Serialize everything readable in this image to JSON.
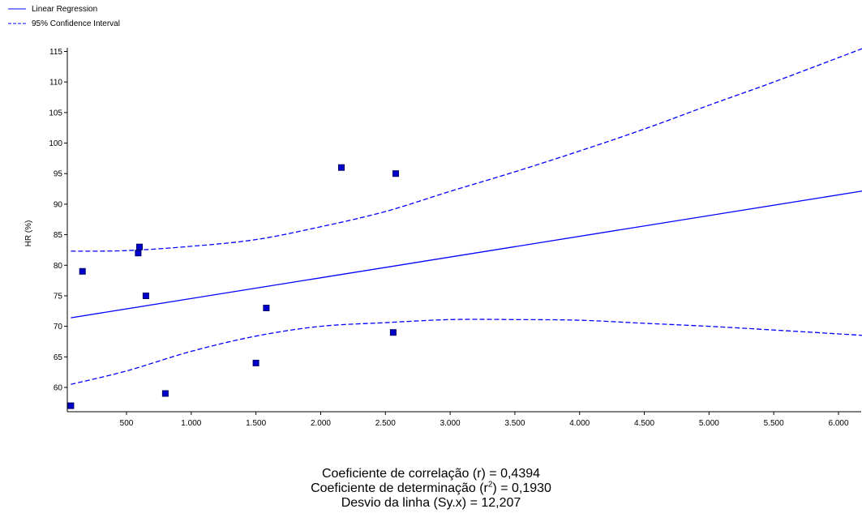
{
  "legend": {
    "regression_label": "Linear Regression",
    "ci_label": "95% Confidence Interval"
  },
  "colors": {
    "series": "#0000ff",
    "marker_fill": "#0000cc",
    "marker_border": "#000066",
    "axis": "#000000"
  },
  "chart_data": {
    "type": "scatter",
    "ylabel": "HR (%)",
    "xlabel": "",
    "xlim": [
      50,
      6200
    ],
    "ylim": [
      56.5,
      116
    ],
    "x_ticks": [
      500,
      1000,
      1500,
      2000,
      2500,
      3000,
      3500,
      4000,
      4500,
      5000,
      5500,
      6000
    ],
    "x_tick_labels": [
      "500",
      "1.000",
      "1.500",
      "2.000",
      "2.500",
      "3.000",
      "3.500",
      "4.000",
      "4.500",
      "5.000",
      "5.500",
      "6.000"
    ],
    "y_ticks": [
      60,
      65,
      70,
      75,
      80,
      85,
      90,
      95,
      100,
      105,
      110,
      115
    ],
    "points": [
      {
        "x": 70,
        "y": 57
      },
      {
        "x": 160,
        "y": 79
      },
      {
        "x": 590,
        "y": 82
      },
      {
        "x": 600,
        "y": 83
      },
      {
        "x": 650,
        "y": 75
      },
      {
        "x": 800,
        "y": 59
      },
      {
        "x": 1500,
        "y": 64
      },
      {
        "x": 1580,
        "y": 73
      },
      {
        "x": 2160,
        "y": 96
      },
      {
        "x": 2560,
        "y": 69
      },
      {
        "x": 2580,
        "y": 95
      }
    ],
    "regression_line": [
      {
        "x": 70,
        "y": 71.4
      },
      {
        "x": 6200,
        "y": 92.2
      }
    ],
    "ci_upper": [
      {
        "x": 70,
        "y": 82.3
      },
      {
        "x": 500,
        "y": 82.4
      },
      {
        "x": 1000,
        "y": 83.1
      },
      {
        "x": 1500,
        "y": 84.2
      },
      {
        "x": 2000,
        "y": 86.3
      },
      {
        "x": 2500,
        "y": 88.8
      },
      {
        "x": 3000,
        "y": 92.1
      },
      {
        "x": 3500,
        "y": 95.3
      },
      {
        "x": 4000,
        "y": 98.7
      },
      {
        "x": 4500,
        "y": 102.3
      },
      {
        "x": 5000,
        "y": 106.2
      },
      {
        "x": 5500,
        "y": 110.0
      },
      {
        "x": 6200,
        "y": 115.6
      }
    ],
    "ci_lower": [
      {
        "x": 70,
        "y": 60.5
      },
      {
        "x": 500,
        "y": 62.7
      },
      {
        "x": 1000,
        "y": 65.9
      },
      {
        "x": 1500,
        "y": 68.4
      },
      {
        "x": 2000,
        "y": 70.0
      },
      {
        "x": 2500,
        "y": 70.6
      },
      {
        "x": 3000,
        "y": 71.1
      },
      {
        "x": 3500,
        "y": 71.1
      },
      {
        "x": 4000,
        "y": 71.0
      },
      {
        "x": 4500,
        "y": 70.5
      },
      {
        "x": 5000,
        "y": 70.0
      },
      {
        "x": 5500,
        "y": 69.4
      },
      {
        "x": 6200,
        "y": 68.5
      }
    ],
    "grid": false,
    "legend_position": "top-left"
  },
  "stats": {
    "correlation": "Coeficiente de correlação (r) = 0,4394",
    "determination_prefix": "Coeficiente de determinação (r",
    "determination_exp": "2",
    "determination_suffix": ") = 0,1930",
    "deviation": "Desvio da linha (Sy.x) = 12,207"
  }
}
